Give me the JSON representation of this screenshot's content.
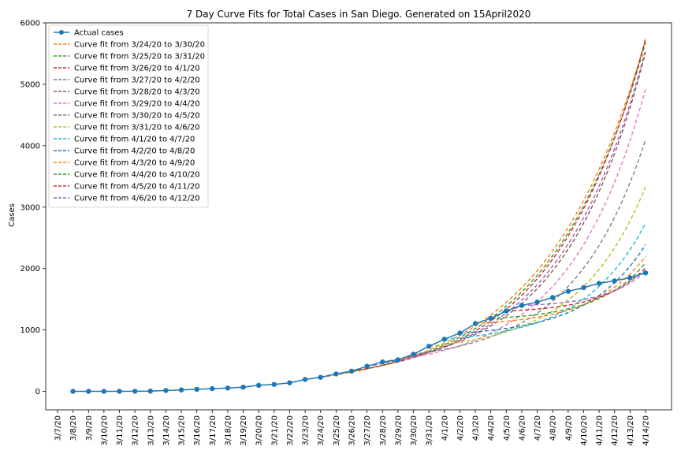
{
  "chart_data": {
    "type": "line",
    "title": "7 Day Curve Fits for Total Cases in San Diego. Generated on 15April2020",
    "xlabel": "",
    "ylabel": "Cases",
    "ylim": [
      -300,
      6000
    ],
    "yticks": [
      0,
      1000,
      2000,
      3000,
      4000,
      5000,
      6000
    ],
    "grid": false,
    "legend_position": "top-left",
    "x_categories": [
      "3/7/20",
      "3/8/20",
      "3/9/20",
      "3/10/20",
      "3/11/20",
      "3/12/20",
      "3/13/20",
      "3/14/20",
      "3/15/20",
      "3/16/20",
      "3/17/20",
      "3/18/20",
      "3/19/20",
      "3/20/20",
      "3/21/20",
      "3/22/20",
      "3/23/20",
      "3/24/20",
      "3/25/20",
      "3/26/20",
      "3/27/20",
      "3/28/20",
      "3/29/20",
      "3/30/20",
      "3/31/20",
      "4/1/20",
      "4/2/20",
      "4/3/20",
      "4/4/20",
      "4/5/20",
      "4/6/20",
      "4/7/20",
      "4/8/20",
      "4/9/20",
      "4/10/20",
      "4/11/20",
      "4/12/20",
      "4/13/20",
      "4/14/20"
    ],
    "actual": {
      "name": "Actual cases",
      "color": "#1f77b4",
      "x": [
        "3/8/20",
        "3/9/20",
        "3/10/20",
        "3/11/20",
        "3/12/20",
        "3/13/20",
        "3/14/20",
        "3/15/20",
        "3/16/20",
        "3/17/20",
        "3/18/20",
        "3/19/20",
        "3/20/20",
        "3/21/20",
        "3/22/20",
        "3/23/20",
        "3/24/20",
        "3/25/20",
        "3/26/20",
        "3/27/20",
        "3/28/20",
        "3/29/20",
        "3/30/20",
        "3/31/20",
        "4/1/20",
        "4/2/20",
        "4/3/20",
        "4/4/20",
        "4/5/20",
        "4/6/20",
        "4/7/20",
        "4/8/20",
        "4/9/20",
        "4/10/20",
        "4/11/20",
        "4/12/20",
        "4/13/20",
        "4/14/20"
      ],
      "values": [
        2,
        2,
        2,
        2,
        3,
        5,
        15,
        25,
        35,
        45,
        55,
        70,
        100,
        115,
        140,
        195,
        230,
        285,
        330,
        410,
        480,
        515,
        605,
        735,
        850,
        950,
        1105,
        1190,
        1310,
        1400,
        1455,
        1530,
        1630,
        1690,
        1760,
        1800,
        1850,
        1930
      ]
    },
    "series": [
      {
        "name": "Curve fit from 3/24/20 to 3/30/20",
        "color": "#ff7f0e",
        "start": "3/24/20",
        "end_value": 5720
      },
      {
        "name": "Curve fit from 3/25/20 to 3/31/20",
        "color": "#2ca02c",
        "start": "3/25/20",
        "end_value": 5680
      },
      {
        "name": "Curve fit from 3/26/20 to 4/1/20",
        "color": "#d62728",
        "start": "3/26/20",
        "end_value": 5740
      },
      {
        "name": "Curve fit from 3/27/20 to 4/2/20",
        "color": "#9467bd",
        "start": "3/27/20",
        "end_value": 5560
      },
      {
        "name": "Curve fit from 3/28/20 to 4/3/20",
        "color": "#8c564b",
        "start": "3/28/20",
        "end_value": 5520
      },
      {
        "name": "Curve fit from 3/29/20 to 4/4/20",
        "color": "#e377c2",
        "start": "3/29/20",
        "end_value": 4920
      },
      {
        "name": "Curve fit from 3/30/20 to 4/5/20",
        "color": "#7f7f7f",
        "start": "3/30/20",
        "end_value": 4100
      },
      {
        "name": "Curve fit from 3/31/20 to 4/6/20",
        "color": "#bcbd22",
        "start": "3/31/20",
        "end_value": 3330
      },
      {
        "name": "Curve fit from 4/1/20 to 4/7/20",
        "color": "#17becf",
        "start": "4/1/20",
        "end_value": 2740
      },
      {
        "name": "Curve fit from 4/2/20 to 4/8/20",
        "color": "#1f77b4",
        "start": "4/2/20",
        "end_value": 2390
      },
      {
        "name": "Curve fit from 4/3/20 to 4/9/20",
        "color": "#ff7f0e",
        "start": "4/3/20",
        "end_value": 2200
      },
      {
        "name": "Curve fit from 4/4/20 to 4/10/20",
        "color": "#2ca02c",
        "start": "4/4/20",
        "end_value": 2090
      },
      {
        "name": "Curve fit from 4/5/20 to 4/11/20",
        "color": "#d62728",
        "start": "4/5/20",
        "end_value": 2010
      },
      {
        "name": "Curve fit from 4/6/20 to 4/12/20",
        "color": "#9467bd",
        "start": "4/6/20",
        "end_value": 1960
      }
    ]
  }
}
